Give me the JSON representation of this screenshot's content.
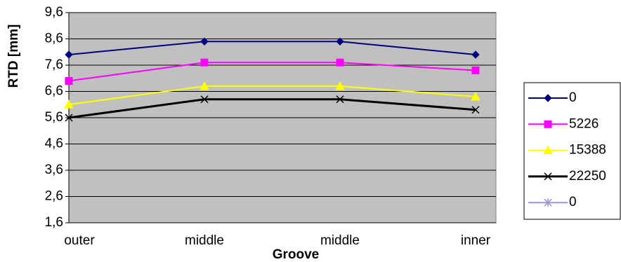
{
  "chart_data": {
    "type": "line",
    "x_label": "Groove",
    "y_label": "RTD [mm]",
    "categories": [
      "outer",
      "middle",
      "middle",
      "inner"
    ],
    "series": [
      {
        "name": "0",
        "color": "#000080",
        "marker": "diamond",
        "values": [
          8.0,
          8.5,
          8.5,
          8.0
        ]
      },
      {
        "name": "5226",
        "color": "#ff00ff",
        "marker": "square",
        "values": [
          7.0,
          7.7,
          7.7,
          7.4
        ]
      },
      {
        "name": "15388",
        "color": "#ffff00",
        "marker": "triangle",
        "values": [
          6.1,
          6.8,
          6.8,
          6.4
        ]
      },
      {
        "name": "22250",
        "color": "#000000",
        "marker": "x",
        "values": [
          5.6,
          6.3,
          6.3,
          5.9
        ]
      },
      {
        "name": "0",
        "color": "#9999cc",
        "marker": "asterisk",
        "values": [
          null,
          null,
          null,
          null
        ]
      }
    ],
    "ylim": [
      1.6,
      9.6
    ],
    "yticks": [
      {
        "value": 1.6,
        "label": "1,6"
      },
      {
        "value": 2.6,
        "label": "2,6"
      },
      {
        "value": 3.6,
        "label": "3,6"
      },
      {
        "value": 4.6,
        "label": "4,6"
      },
      {
        "value": 5.6,
        "label": "5,6"
      },
      {
        "value": 6.6,
        "label": "6,6"
      },
      {
        "value": 7.6,
        "label": "7,6"
      },
      {
        "value": 8.6,
        "label": "8,6"
      },
      {
        "value": 9.6,
        "label": "9,6"
      }
    ],
    "grid": true,
    "legend": "right"
  }
}
